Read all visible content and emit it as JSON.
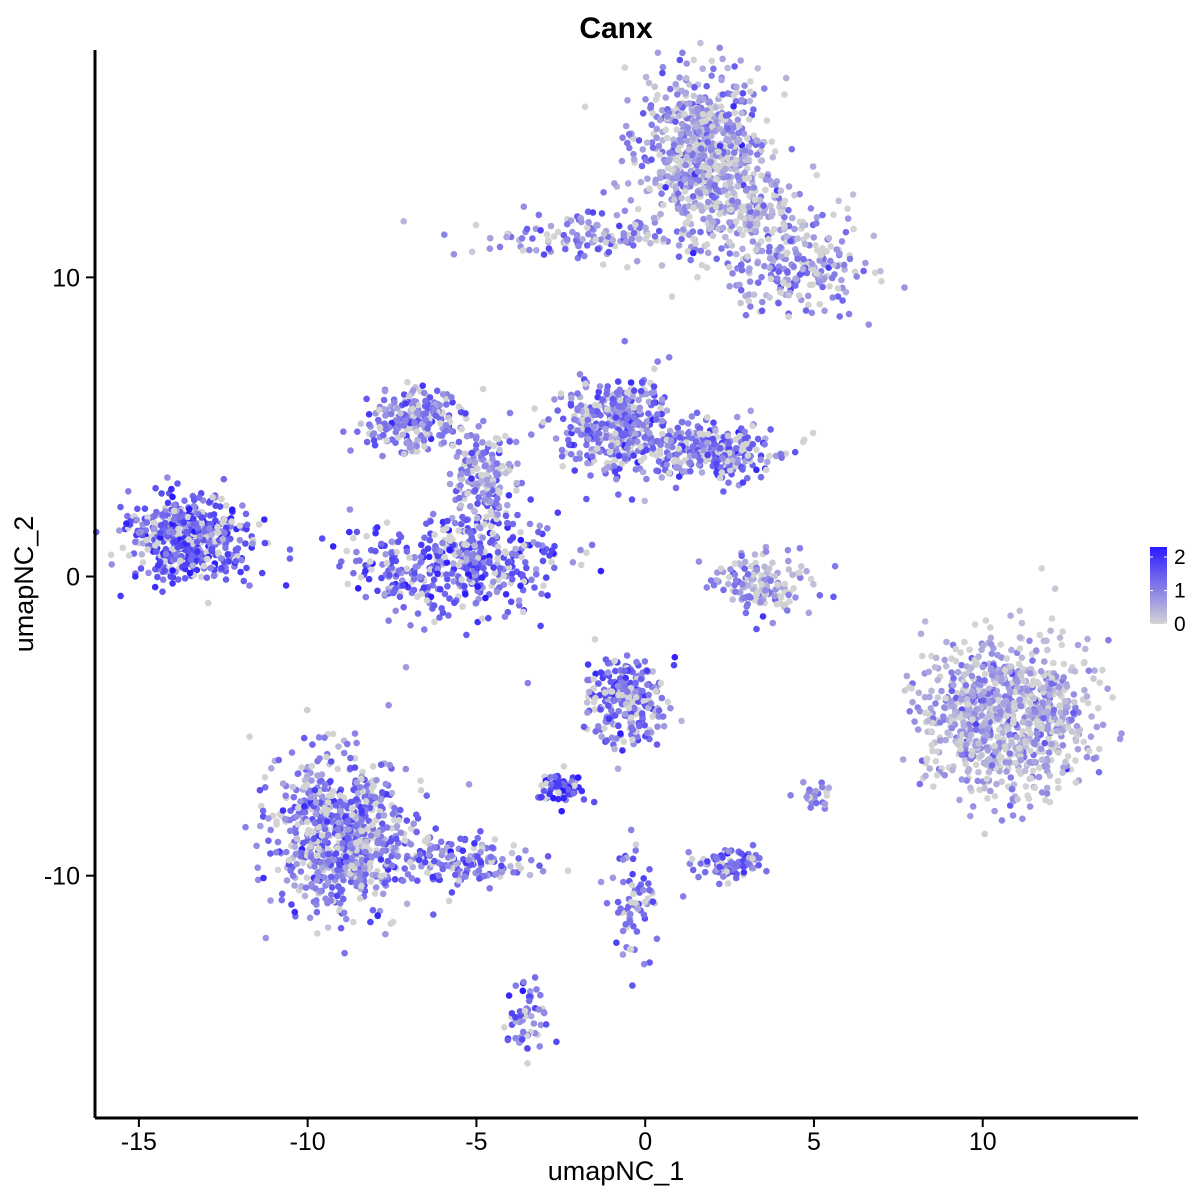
{
  "chart_data": {
    "type": "scatter",
    "title": "Canx",
    "xlabel": "umapNC_1",
    "ylabel": "umapNC_2",
    "xlim": [
      -16.3,
      14.6
    ],
    "ylim": [
      -18.1,
      17.6
    ],
    "x_ticks": [
      -15,
      -10,
      -5,
      0,
      5,
      10
    ],
    "x_tick_labels": [
      "-15",
      "-10",
      "-5",
      "0",
      "5",
      "10"
    ],
    "y_ticks": [
      10,
      0,
      -10
    ],
    "y_tick_labels": [
      "10",
      "0",
      "-10"
    ],
    "grid": false,
    "legend": {
      "position": "right",
      "type": "continuous-colorbar",
      "range": [
        0,
        2.3
      ],
      "ticks": [
        2,
        1,
        0
      ],
      "tick_labels": [
        "2",
        "1",
        "0"
      ],
      "colors": {
        "low": "#d3d3d3",
        "high": "#2b1bff"
      }
    },
    "point_color_low": "#d3d3d3",
    "point_color_high": "#2b1bff",
    "clusters": [
      {
        "name": "cluster-top-blob",
        "cx": 1.7,
        "cy": 14.2,
        "sx": 1.0,
        "sy": 1.3,
        "n": 700,
        "mean_expr": 0.75
      },
      {
        "name": "cluster-top-arm-left",
        "cx": -1.5,
        "cy": 11.4,
        "sx": 1.8,
        "sy": 0.4,
        "n": 140,
        "mean_expr": 0.9
      },
      {
        "name": "cluster-top-arm-right",
        "cx": 4.4,
        "cy": 10.4,
        "sx": 1.2,
        "sy": 0.9,
        "n": 230,
        "mean_expr": 0.85
      },
      {
        "name": "cluster-top-neck",
        "cx": 3.1,
        "cy": 12.2,
        "sx": 0.8,
        "sy": 0.7,
        "n": 150,
        "mean_expr": 0.55
      },
      {
        "name": "cluster-far-left",
        "cx": -13.5,
        "cy": 1.3,
        "sx": 0.9,
        "sy": 0.7,
        "n": 500,
        "mean_expr": 1.5
      },
      {
        "name": "cluster-left-upper-arm",
        "cx": -6.8,
        "cy": 5.2,
        "sx": 0.8,
        "sy": 0.5,
        "n": 220,
        "mean_expr": 1.0
      },
      {
        "name": "cluster-horseshoe",
        "cx": -5.6,
        "cy": 0.4,
        "sx": 1.5,
        "sy": 0.8,
        "n": 450,
        "mean_expr": 1.4
      },
      {
        "name": "cluster-mid-stem",
        "cx": -4.7,
        "cy": 3.2,
        "sx": 0.5,
        "sy": 0.9,
        "n": 180,
        "mean_expr": 0.9
      },
      {
        "name": "cluster-center-upper",
        "cx": -0.9,
        "cy": 5.0,
        "sx": 0.8,
        "sy": 0.8,
        "n": 420,
        "mean_expr": 1.1
      },
      {
        "name": "cluster-center-right",
        "cx": 2.0,
        "cy": 4.2,
        "sx": 0.9,
        "sy": 0.5,
        "n": 280,
        "mean_expr": 1.2
      },
      {
        "name": "cluster-center-small",
        "cx": 3.4,
        "cy": -0.3,
        "sx": 0.8,
        "sy": 0.5,
        "n": 140,
        "mean_expr": 0.7
      },
      {
        "name": "cluster-right-big",
        "cx": 10.7,
        "cy": -4.7,
        "sx": 1.2,
        "sy": 1.3,
        "n": 900,
        "mean_expr": 0.6
      },
      {
        "name": "cluster-bottom-left",
        "cx": -9.0,
        "cy": -8.6,
        "sx": 1.0,
        "sy": 1.3,
        "n": 750,
        "mean_expr": 1.1
      },
      {
        "name": "cluster-bottom-left-tail",
        "cx": -5.5,
        "cy": -9.5,
        "sx": 1.1,
        "sy": 0.4,
        "n": 160,
        "mean_expr": 1.2
      },
      {
        "name": "cluster-center-lower",
        "cx": -0.6,
        "cy": -4.1,
        "sx": 0.6,
        "sy": 0.7,
        "n": 250,
        "mean_expr": 1.2
      },
      {
        "name": "cluster-small-left-lower",
        "cx": -2.5,
        "cy": -7.0,
        "sx": 0.35,
        "sy": 0.25,
        "n": 70,
        "mean_expr": 1.7
      },
      {
        "name": "cluster-small-center-lower",
        "cx": 2.5,
        "cy": -9.6,
        "sx": 0.5,
        "sy": 0.25,
        "n": 90,
        "mean_expr": 1.2
      },
      {
        "name": "cluster-bottom-streak",
        "cx": -3.5,
        "cy": -14.8,
        "sx": 0.3,
        "sy": 0.6,
        "n": 60,
        "mean_expr": 1.3
      },
      {
        "name": "cluster-streak-lower",
        "cx": -0.3,
        "cy": -11.0,
        "sx": 0.4,
        "sy": 0.9,
        "n": 70,
        "mean_expr": 1.2
      },
      {
        "name": "cluster-small-right-lower",
        "cx": 5.0,
        "cy": -7.4,
        "sx": 0.3,
        "sy": 0.3,
        "n": 25,
        "mean_expr": 0.9
      }
    ]
  }
}
